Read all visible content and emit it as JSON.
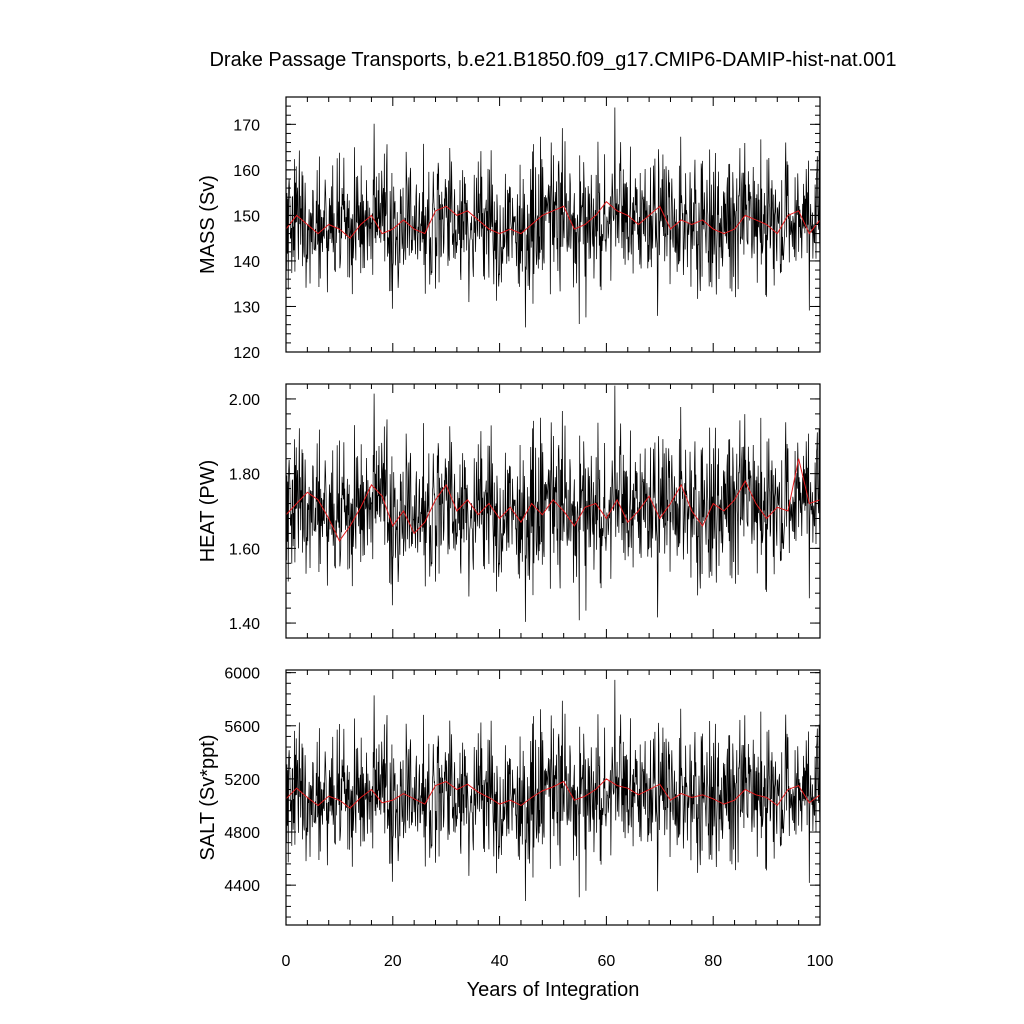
{
  "chart_data": {
    "title": "Drake Passage Transports, b.e21.B1850.f09_g17.CMIP6-DAMIP-hist-nat.001",
    "xlabel": "Years of Integration",
    "xlim": [
      0,
      100
    ],
    "xticks": [
      "0",
      "20",
      "40",
      "60",
      "80",
      "100"
    ],
    "colors": {
      "raw": "#000000",
      "smoothed": "#e31a1c"
    },
    "panels": [
      {
        "type": "line",
        "ylabel": "MASS (Sv)",
        "ylim": [
          120,
          176
        ],
        "yticks": [
          120,
          130,
          140,
          150,
          160,
          170
        ],
        "ytick_labels": [
          "120",
          "130",
          "140",
          "150",
          "160",
          "170"
        ],
        "raw": {
          "base": 148.5,
          "amplitude": 7.5
        },
        "smoothed": {
          "x": [
            0,
            2,
            4,
            6,
            8,
            10,
            12,
            14,
            16,
            18,
            20,
            22,
            24,
            26,
            28,
            30,
            32,
            34,
            36,
            38,
            40,
            42,
            44,
            46,
            48,
            50,
            52,
            54,
            56,
            58,
            60,
            62,
            64,
            66,
            68,
            70,
            72,
            74,
            76,
            78,
            80,
            82,
            84,
            86,
            88,
            90,
            92,
            94,
            96,
            98,
            100
          ],
          "values": [
            147,
            150,
            148,
            146,
            148,
            147,
            145,
            148,
            150,
            146,
            147,
            149,
            147,
            146,
            151,
            152,
            150,
            151,
            149,
            147,
            146,
            147,
            146,
            148,
            150,
            151,
            152,
            147,
            148,
            150,
            153,
            151,
            150,
            148,
            150,
            152,
            147,
            149,
            148,
            149,
            147,
            146,
            147,
            150,
            149,
            148,
            146,
            150,
            151,
            146,
            149
          ]
        }
      },
      {
        "type": "line",
        "ylabel": "HEAT (PW)",
        "ylim": [
          1.36,
          2.04
        ],
        "yticks": [
          1.4,
          1.6,
          1.8,
          2.0
        ],
        "ytick_labels": [
          "1.40",
          "1.60",
          "1.80",
          "2.00"
        ],
        "raw": {
          "base": 1.71,
          "amplitude": 0.1
        },
        "smoothed": {
          "x": [
            0,
            2,
            4,
            6,
            8,
            10,
            12,
            14,
            16,
            18,
            20,
            22,
            24,
            26,
            28,
            30,
            32,
            34,
            36,
            38,
            40,
            42,
            44,
            46,
            48,
            50,
            52,
            54,
            56,
            58,
            60,
            62,
            64,
            66,
            68,
            70,
            72,
            74,
            76,
            78,
            80,
            82,
            84,
            86,
            88,
            90,
            92,
            94,
            96,
            98,
            100
          ],
          "values": [
            1.69,
            1.72,
            1.75,
            1.73,
            1.68,
            1.62,
            1.66,
            1.71,
            1.77,
            1.74,
            1.66,
            1.7,
            1.64,
            1.67,
            1.73,
            1.77,
            1.7,
            1.73,
            1.69,
            1.72,
            1.68,
            1.71,
            1.67,
            1.72,
            1.69,
            1.73,
            1.7,
            1.66,
            1.71,
            1.72,
            1.68,
            1.73,
            1.67,
            1.7,
            1.74,
            1.68,
            1.72,
            1.77,
            1.7,
            1.66,
            1.72,
            1.7,
            1.73,
            1.78,
            1.72,
            1.68,
            1.71,
            1.7,
            1.84,
            1.72,
            1.73
          ]
        }
      },
      {
        "type": "line",
        "ylabel": "SALT (Sv*ppt)",
        "ylim": [
          4100,
          6020
        ],
        "yticks": [
          4400,
          4800,
          5200,
          5600,
          6000
        ],
        "ytick_labels": [
          "4400",
          "4800",
          "5200",
          "5600",
          "6000"
        ],
        "raw": {
          "base": 5080,
          "amplitude": 260
        },
        "smoothed": {
          "x": [
            0,
            2,
            4,
            6,
            8,
            10,
            12,
            14,
            16,
            18,
            20,
            22,
            24,
            26,
            28,
            30,
            32,
            34,
            36,
            38,
            40,
            42,
            44,
            46,
            48,
            50,
            52,
            54,
            56,
            58,
            60,
            62,
            64,
            66,
            68,
            70,
            72,
            74,
            76,
            78,
            80,
            82,
            84,
            86,
            88,
            90,
            92,
            94,
            96,
            98,
            100
          ],
          "values": [
            5050,
            5130,
            5060,
            5000,
            5070,
            5040,
            4980,
            5060,
            5120,
            5020,
            5040,
            5090,
            5050,
            5010,
            5150,
            5180,
            5120,
            5160,
            5100,
            5060,
            5010,
            5040,
            5000,
            5060,
            5110,
            5140,
            5180,
            5040,
            5070,
            5120,
            5200,
            5150,
            5130,
            5080,
            5120,
            5160,
            5040,
            5090,
            5060,
            5080,
            5050,
            5010,
            5040,
            5120,
            5080,
            5060,
            5000,
            5120,
            5150,
            5020,
            5080
          ]
        }
      }
    ]
  }
}
